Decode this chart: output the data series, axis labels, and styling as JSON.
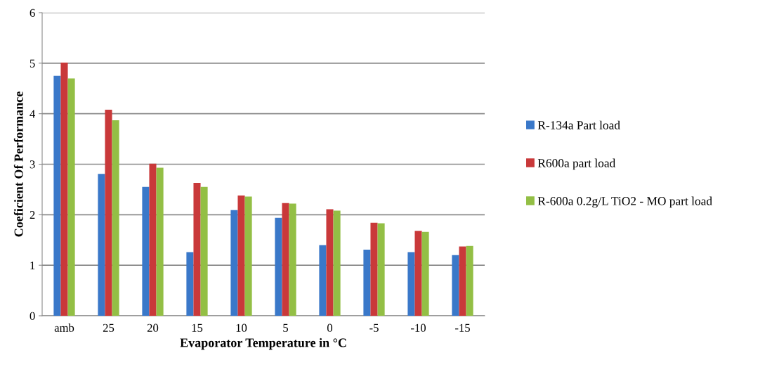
{
  "chart_data": {
    "type": "bar",
    "xlabel": "Evaporator Temperature in °C",
    "ylabel": "Coeficient Of Performance",
    "categories": [
      "amb",
      "25",
      "20",
      "15",
      "10",
      "5",
      "0",
      "-5",
      "-10",
      "-15"
    ],
    "series": [
      {
        "name": "R-134a Part load",
        "color": "#3a78c9",
        "values": [
          4.75,
          2.81,
          2.55,
          1.26,
          2.09,
          1.94,
          1.4,
          1.31,
          1.26,
          1.2
        ]
      },
      {
        "name": "R600a part load",
        "color": "#c9393a",
        "values": [
          5.01,
          4.08,
          3.01,
          2.63,
          2.38,
          2.23,
          2.11,
          1.84,
          1.68,
          1.37
        ]
      },
      {
        "name": "R-600a 0.2g/L TiO2 - MO part load",
        "color": "#93bf45",
        "values": [
          4.7,
          3.87,
          2.93,
          2.55,
          2.36,
          2.22,
          2.08,
          1.83,
          1.66,
          1.38
        ]
      }
    ],
    "ylim": [
      0,
      6
    ],
    "yticks": [
      0,
      1,
      2,
      3,
      4,
      5,
      6
    ],
    "grid": "y",
    "legend": "right"
  }
}
